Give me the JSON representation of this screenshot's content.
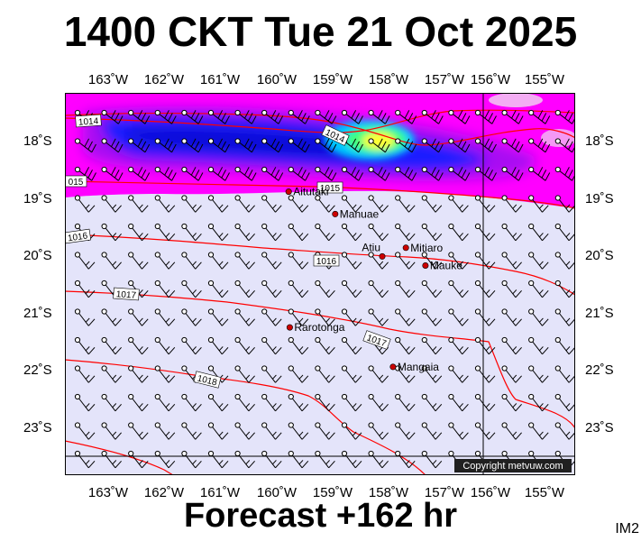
{
  "title": "1400 CKT Tue 21 Oct 2025",
  "footer": "Forecast +162 hr",
  "tag": "IM2",
  "copyright": "Copyright metvuw.com",
  "lon_labels": [
    "163˚W",
    "162˚W",
    "161˚W",
    "160˚W",
    "159˚W",
    "158˚W",
    "157˚W",
    "156˚W",
    "155˚W"
  ],
  "lat_labels": [
    "18˚S",
    "19˚S",
    "20˚S",
    "21˚S",
    "22˚S",
    "23˚S"
  ],
  "places": [
    {
      "name": "Aitutaki",
      "lon": -159.79,
      "lat": -18.86
    },
    {
      "name": "Manuae",
      "lon": -158.96,
      "lat": -19.25
    },
    {
      "name": "Atiu",
      "lon": -158.12,
      "lat": -19.99
    },
    {
      "name": "Mitiaro",
      "lon": -157.7,
      "lat": -19.84
    },
    {
      "name": "Mauke",
      "lon": -157.35,
      "lat": -20.15
    },
    {
      "name": "Rarotonga",
      "lon": -159.77,
      "lat": -21.23
    },
    {
      "name": "Mangaia",
      "lon": -157.93,
      "lat": -21.92
    }
  ],
  "isobar_labels": [
    "1014",
    "1014",
    "015",
    "1015",
    "1016",
    "1016",
    "1017",
    "1017",
    "1018"
  ],
  "colors": {
    "background": "#e4e4fa",
    "isobar": "#ff0000",
    "place": "#cc0000",
    "band_magenta": "#ff00ff",
    "band_blue": "#1b1bff"
  }
}
